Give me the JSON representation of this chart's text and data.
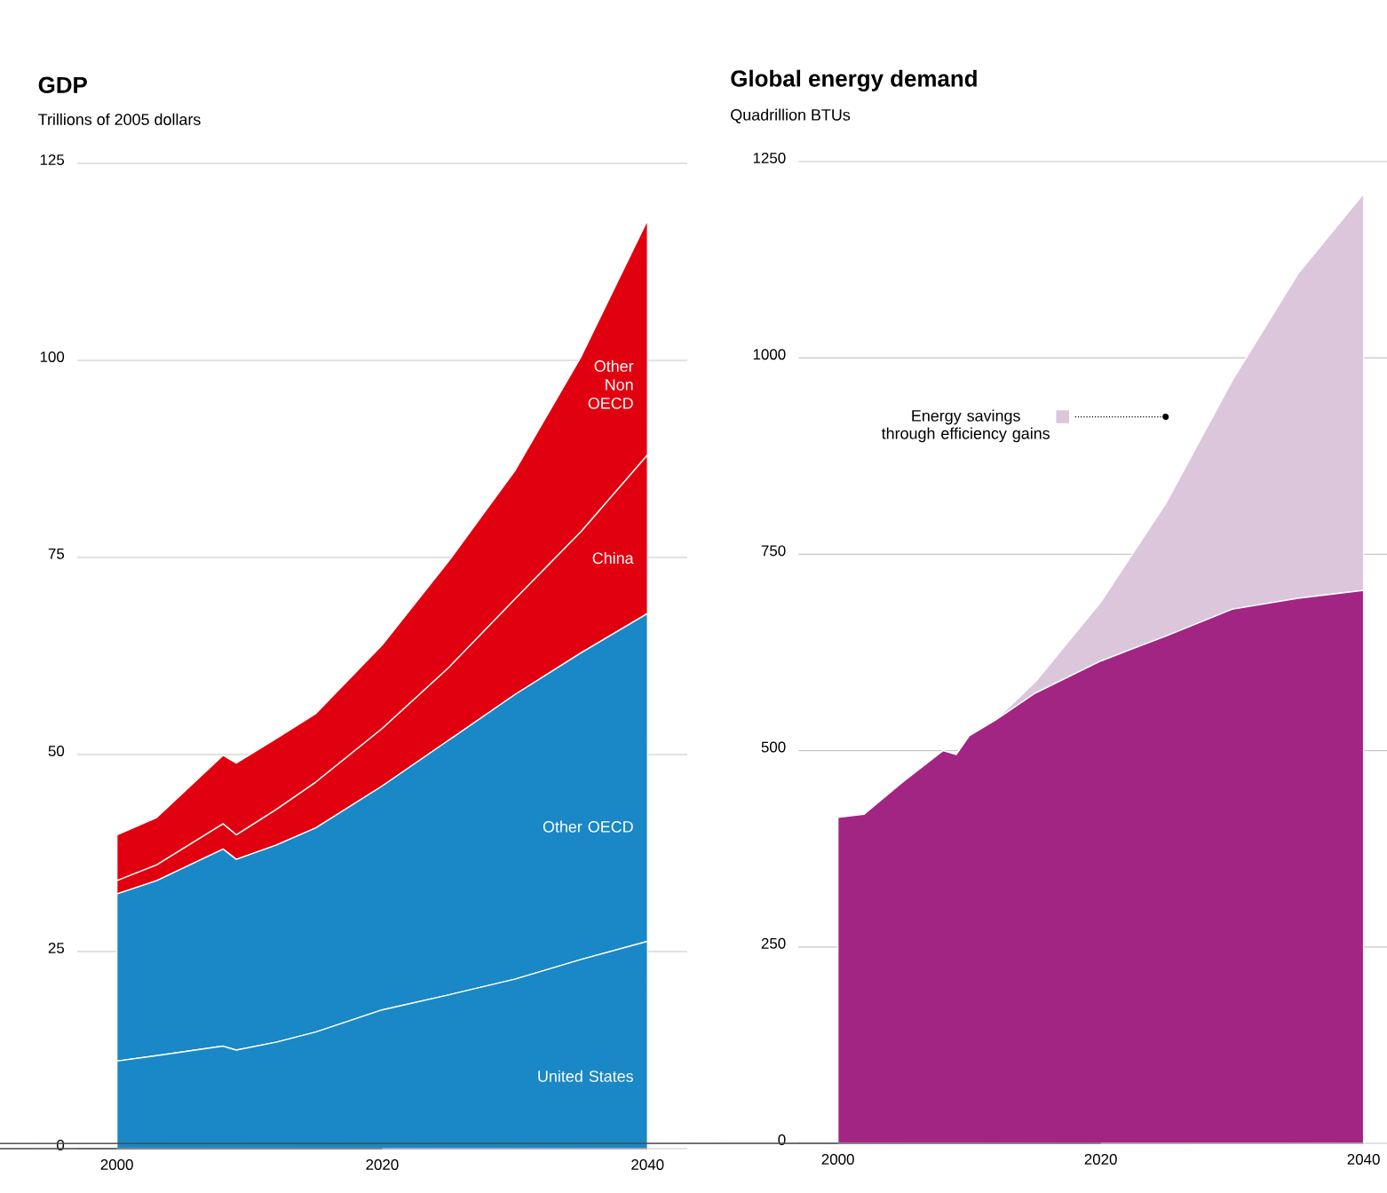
{
  "chart_data": [
    {
      "type": "area",
      "title": "GDP",
      "subtitle": "Trillions of 2005 dollars",
      "stacked": true,
      "legend": false,
      "grid": "y",
      "x": [
        2000,
        2003,
        2008,
        2009,
        2012,
        2015,
        2020,
        2025,
        2030,
        2035,
        2040
      ],
      "xlim": [
        1997,
        2043
      ],
      "xticks": [
        2000,
        2020,
        2040
      ],
      "ylim": [
        0,
        125
      ],
      "yticks": [
        0,
        25,
        50,
        75,
        100,
        125
      ],
      "series": [
        {
          "name": "United States",
          "color": "#1a87c6",
          "values": [
            11.1,
            11.8,
            13.0,
            12.5,
            13.5,
            14.8,
            17.6,
            19.5,
            21.5,
            24.0,
            26.3
          ]
        },
        {
          "name": "Other OECD",
          "color": "#1a87c6",
          "values": [
            21.2,
            22.2,
            25.0,
            24.2,
            25.0,
            25.9,
            28.4,
            32.3,
            36.1,
            38.9,
            41.6
          ]
        },
        {
          "name": "China",
          "color": "#e1000f",
          "values": [
            1.7,
            2.0,
            3.2,
            3.1,
            4.5,
            5.8,
            7.3,
            9.2,
            12.1,
            15.4,
            20.1
          ]
        },
        {
          "name": "Other Non OECD",
          "color": "#e1000f",
          "values": [
            5.8,
            6.0,
            8.7,
            9.1,
            9.0,
            8.7,
            10.6,
            13.5,
            16.3,
            22.2,
            29.8
          ]
        }
      ]
    },
    {
      "type": "area",
      "title": "Global energy demand",
      "subtitle": "Quadrillion BTUs",
      "stacked": true,
      "legend": "top left",
      "grid": "y",
      "x": [
        2000,
        2002,
        2005,
        2008,
        2009,
        2010,
        2012,
        2015,
        2020,
        2025,
        2030,
        2035,
        2040
      ],
      "xlim": [
        1997,
        2043
      ],
      "xticks": [
        2000,
        2020,
        2040
      ],
      "ylim": [
        0,
        1250
      ],
      "yticks": [
        0,
        250,
        500,
        750,
        1000,
        1250
      ],
      "series": [
        {
          "color": "#a22583",
          "values": [
            415,
            419,
            461,
            500,
            495,
            519,
            539,
            573,
            614,
            646,
            680,
            694,
            704
          ]
        },
        {
          "name": "Energy savings through efficiency gains",
          "color": "#dcc6dc",
          "values": [
            0,
            0,
            0,
            0,
            0,
            0,
            0,
            14,
            75,
            170,
            291,
            413,
            505
          ]
        }
      ]
    }
  ]
}
